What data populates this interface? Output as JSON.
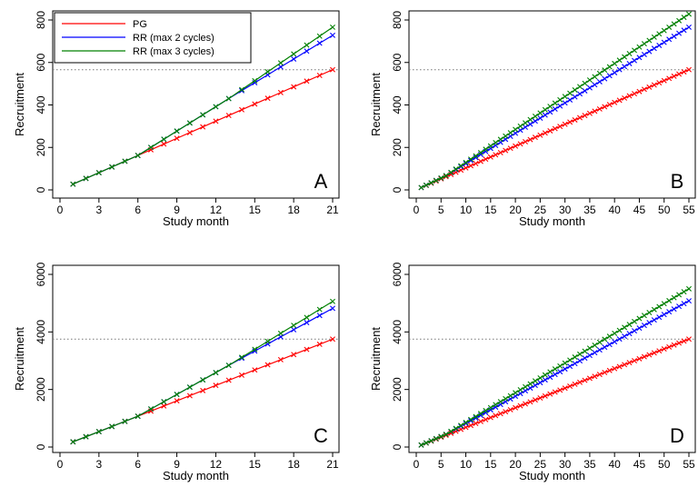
{
  "legend": {
    "entries": [
      {
        "label": "PG",
        "color": "#ff0000"
      },
      {
        "label": "RR (max 2 cycles)",
        "color": "#0000ff"
      },
      {
        "label": "RR (max 3 cycles)",
        "color": "#008000"
      }
    ]
  },
  "chart_data": [
    {
      "type": "line",
      "panel_label": "A",
      "xlabel": "Study month",
      "ylabel": "Recruitment",
      "xlim": [
        0,
        21
      ],
      "ylim": [
        0,
        800
      ],
      "x_ticks": [
        0,
        3,
        6,
        9,
        12,
        15,
        18,
        21
      ],
      "y_ticks": [
        0,
        200,
        400,
        600,
        800
      ],
      "target_line": 566,
      "grid": false,
      "legend_position": "top-left",
      "x_range": [
        1,
        21
      ],
      "marker": "x",
      "series": [
        {
          "name": "PG",
          "color": "#ff0000",
          "segments": [
            [
              1,
              6,
              27,
              162
            ],
            [
              6,
              21,
              162,
              566
            ]
          ]
        },
        {
          "name": "RR (max 2 cycles)",
          "color": "#0000ff",
          "segments": [
            [
              1,
              6,
              27,
              162
            ],
            [
              6,
              13,
              162,
              430
            ],
            [
              13,
              21,
              430,
              728
            ]
          ]
        },
        {
          "name": "RR (max 3 cycles)",
          "color": "#008000",
          "segments": [
            [
              1,
              6,
              27,
              162
            ],
            [
              6,
              13,
              162,
              430
            ],
            [
              13,
              21,
              430,
              766
            ]
          ]
        }
      ]
    },
    {
      "type": "line",
      "panel_label": "B",
      "xlabel": "Study month",
      "ylabel": "Recruitment",
      "xlim": [
        0,
        55
      ],
      "ylim": [
        0,
        820
      ],
      "x_ticks": [
        0,
        5,
        10,
        15,
        20,
        25,
        30,
        35,
        40,
        45,
        50,
        55
      ],
      "y_ticks": [
        0,
        200,
        400,
        600,
        800
      ],
      "target_line": 566,
      "grid": false,
      "legend_position": "none",
      "x_range": [
        1,
        55
      ],
      "marker": "x",
      "series": [
        {
          "name": "PG",
          "color": "#ff0000",
          "segments": [
            [
              1,
              55,
              11,
              566
            ]
          ]
        },
        {
          "name": "RR (max 2 cycles)",
          "color": "#0000ff",
          "segments": [
            [
              1,
              6,
              11,
              67
            ],
            [
              6,
              55,
              67,
              766
            ]
          ]
        },
        {
          "name": "RR (max 3 cycles)",
          "color": "#008000",
          "segments": [
            [
              1,
              6,
              11,
              67
            ],
            [
              6,
              55,
              67,
              828
            ]
          ]
        }
      ]
    },
    {
      "type": "line",
      "panel_label": "C",
      "xlabel": "Study month",
      "ylabel": "Recruitment",
      "xlim": [
        0,
        21
      ],
      "ylim": [
        0,
        6000
      ],
      "x_ticks": [
        0,
        3,
        6,
        9,
        12,
        15,
        18,
        21
      ],
      "y_ticks": [
        0,
        2000,
        4000,
        6000
      ],
      "target_line": 3750,
      "grid": false,
      "legend_position": "none",
      "x_range": [
        1,
        21
      ],
      "marker": "x",
      "series": [
        {
          "name": "PG",
          "color": "#ff0000",
          "segments": [
            [
              1,
              6,
              180,
              1070
            ],
            [
              6,
              21,
              1070,
              3750
            ]
          ]
        },
        {
          "name": "RR (max 2 cycles)",
          "color": "#0000ff",
          "segments": [
            [
              1,
              6,
              180,
              1070
            ],
            [
              6,
              13,
              1070,
              2840
            ],
            [
              13,
              21,
              2840,
              4820
            ]
          ]
        },
        {
          "name": "RR (max 3 cycles)",
          "color": "#008000",
          "segments": [
            [
              1,
              6,
              180,
              1070
            ],
            [
              6,
              13,
              1070,
              2840
            ],
            [
              13,
              21,
              2840,
              5060
            ]
          ]
        }
      ]
    },
    {
      "type": "line",
      "panel_label": "D",
      "xlabel": "Study month",
      "ylabel": "Recruitment",
      "xlim": [
        0,
        55
      ],
      "ylim": [
        0,
        6000
      ],
      "x_ticks": [
        0,
        5,
        10,
        15,
        20,
        25,
        30,
        35,
        40,
        45,
        50,
        55
      ],
      "y_ticks": [
        0,
        2000,
        4000,
        6000
      ],
      "target_line": 3750,
      "grid": false,
      "legend_position": "none",
      "x_range": [
        1,
        55
      ],
      "marker": "x",
      "series": [
        {
          "name": "PG",
          "color": "#ff0000",
          "segments": [
            [
              1,
              55,
              70,
              3750
            ]
          ]
        },
        {
          "name": "RR (max 2 cycles)",
          "color": "#0000ff",
          "segments": [
            [
              1,
              6,
              70,
              440
            ],
            [
              6,
              55,
              440,
              5080
            ]
          ]
        },
        {
          "name": "RR (max 3 cycles)",
          "color": "#008000",
          "segments": [
            [
              1,
              6,
              70,
              440
            ],
            [
              6,
              55,
              440,
              5500
            ]
          ]
        }
      ]
    }
  ]
}
